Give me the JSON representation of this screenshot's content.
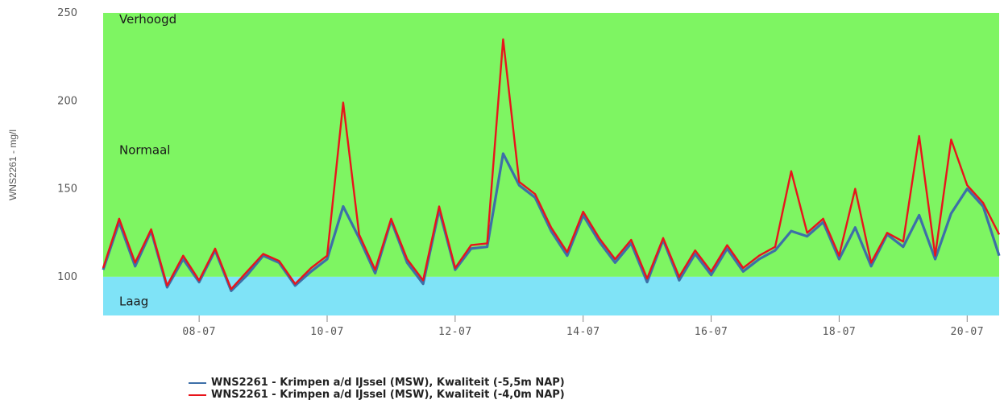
{
  "chart_data": {
    "type": "line",
    "title": "",
    "ylabel": "WNS2261 - mg/l",
    "xlabel": "",
    "ylim": [
      78,
      250
    ],
    "xlim": [
      "2024-07-06T12:00",
      "2024-07-20T12:00"
    ],
    "y_ticks": [
      "100",
      "150",
      "200",
      "250"
    ],
    "x_ticks": [
      "08-07",
      "10-07",
      "12-07",
      "14-07",
      "16-07",
      "18-07",
      "20-07"
    ],
    "bands": [
      {
        "label": "Verhoogd",
        "from": 100,
        "to": 250,
        "color": "#7ef562"
      },
      {
        "label": "Normaal",
        "from": 100,
        "to": 250,
        "color": "#7ef562"
      },
      {
        "label": "Laag",
        "from": 78,
        "to": 100,
        "color": "#7fe3f7"
      }
    ],
    "x": [
      "2024-07-06T12:00",
      "2024-07-06T18:00",
      "2024-07-07T00:00",
      "2024-07-07T06:00",
      "2024-07-07T12:00",
      "2024-07-07T18:00",
      "2024-07-08T00:00",
      "2024-07-08T06:00",
      "2024-07-08T12:00",
      "2024-07-08T18:00",
      "2024-07-09T00:00",
      "2024-07-09T06:00",
      "2024-07-09T12:00",
      "2024-07-09T18:00",
      "2024-07-10T00:00",
      "2024-07-10T06:00",
      "2024-07-10T12:00",
      "2024-07-10T18:00",
      "2024-07-11T00:00",
      "2024-07-11T06:00",
      "2024-07-11T12:00",
      "2024-07-11T18:00",
      "2024-07-12T00:00",
      "2024-07-12T06:00",
      "2024-07-12T12:00",
      "2024-07-12T18:00",
      "2024-07-13T00:00",
      "2024-07-13T06:00",
      "2024-07-13T12:00",
      "2024-07-13T18:00",
      "2024-07-14T00:00",
      "2024-07-14T06:00",
      "2024-07-14T12:00",
      "2024-07-14T18:00",
      "2024-07-15T00:00",
      "2024-07-15T06:00",
      "2024-07-15T12:00",
      "2024-07-15T18:00",
      "2024-07-16T00:00",
      "2024-07-16T06:00",
      "2024-07-16T12:00",
      "2024-07-16T18:00",
      "2024-07-17T00:00",
      "2024-07-17T06:00",
      "2024-07-17T12:00",
      "2024-07-17T18:00",
      "2024-07-18T00:00",
      "2024-07-18T06:00",
      "2024-07-18T12:00",
      "2024-07-18T18:00",
      "2024-07-19T00:00",
      "2024-07-19T06:00",
      "2024-07-19T12:00",
      "2024-07-19T18:00",
      "2024-07-20T00:00",
      "2024-07-20T06:00",
      "2024-07-20T12:00"
    ],
    "series": [
      {
        "name": "WNS2261 - Krimpen a/d IJssel (MSW), Kwaliteit (-5,5m NAP)",
        "color": "#3d6fa8",
        "values": [
          104,
          131,
          106,
          126,
          94,
          110,
          97,
          115,
          92,
          101,
          112,
          108,
          95,
          103,
          110,
          140,
          122,
          102,
          132,
          108,
          96,
          138,
          104,
          116,
          117,
          170,
          152,
          145,
          126,
          112,
          135,
          120,
          108,
          119,
          97,
          121,
          98,
          113,
          101,
          116,
          103,
          110,
          115,
          126,
          123,
          131,
          110,
          128,
          106,
          124,
          117,
          135,
          110,
          136,
          150,
          140,
          112
        ]
      },
      {
        "name": "WNS2261 - Krimpen a/d IJssel (MSW), Kwaliteit (-4,0m NAP)",
        "color": "#e8141b",
        "values": [
          105,
          133,
          108,
          127,
          95,
          112,
          98,
          116,
          93,
          103,
          113,
          109,
          96,
          105,
          112,
          199,
          124,
          104,
          133,
          110,
          98,
          140,
          105,
          118,
          119,
          235,
          154,
          147,
          128,
          114,
          137,
          122,
          110,
          121,
          99,
          122,
          100,
          115,
          103,
          118,
          105,
          112,
          117,
          160,
          125,
          133,
          112,
          150,
          108,
          125,
          120,
          180,
          112,
          178,
          152,
          142,
          124
        ]
      }
    ]
  }
}
